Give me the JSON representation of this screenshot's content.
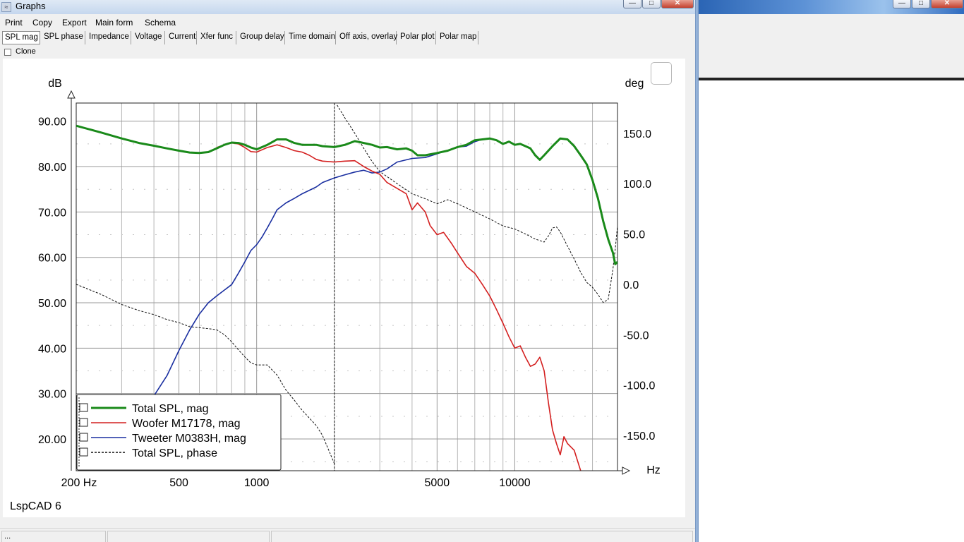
{
  "window": {
    "title": "Graphs",
    "icon_name": "app-graph-icon"
  },
  "menu": [
    "Print",
    "Copy",
    "Export",
    "Main form",
    "Schema"
  ],
  "tabs": [
    "SPL mag",
    "SPL phase",
    "Impedance",
    "Voltage",
    "Current",
    "Xfer func",
    "Group delay",
    "Time domain",
    "Off axis, overlay",
    "Polar plot",
    "Polar map"
  ],
  "active_tab": "SPL mag",
  "clone_label": "Clone",
  "watermark": "LspCAD 6",
  "status": {
    "left": "..."
  },
  "chart_data": {
    "type": "line",
    "xscale": "log",
    "xlim": [
      200,
      25000
    ],
    "ylim_left": [
      13,
      94
    ],
    "ylim_right": [
      -185,
      180
    ],
    "ylabel_left": "dB",
    "ylabel_right": "deg",
    "xlabel": "Hz",
    "x_ticks": [
      {
        "v": 200,
        "label": "200 Hz"
      },
      {
        "v": 500,
        "label": "500"
      },
      {
        "v": 1000,
        "label": "1000"
      },
      {
        "v": 5000,
        "label": "5000"
      },
      {
        "v": 10000,
        "label": "10000"
      }
    ],
    "y_ticks_left": [
      "90.00",
      "80.00",
      "70.00",
      "60.00",
      "50.00",
      "40.00",
      "30.00",
      "20.00"
    ],
    "y_ticks_right": [
      "150.0",
      "100.0",
      "50.0",
      "0.0",
      "-50.0",
      "-100.0",
      "-150.0"
    ],
    "grid": true,
    "marker_x": 2000,
    "legend_position": "bottom-left",
    "series": [
      {
        "name": "Total SPL, mag",
        "axis": "left",
        "color": "#1a8a1a",
        "style": "solid",
        "width": 3,
        "points": [
          [
            200,
            89
          ],
          [
            250,
            87.5
          ],
          [
            300,
            86.2
          ],
          [
            350,
            85.2
          ],
          [
            400,
            84.6
          ],
          [
            450,
            84
          ],
          [
            500,
            83.5
          ],
          [
            550,
            83.1
          ],
          [
            600,
            83
          ],
          [
            650,
            83.2
          ],
          [
            700,
            84
          ],
          [
            750,
            84.8
          ],
          [
            800,
            85.3
          ],
          [
            850,
            85.2
          ],
          [
            900,
            84.8
          ],
          [
            950,
            84.2
          ],
          [
            1000,
            83.8
          ],
          [
            1100,
            84.8
          ],
          [
            1200,
            86
          ],
          [
            1300,
            86
          ],
          [
            1400,
            85.2
          ],
          [
            1500,
            84.8
          ],
          [
            1700,
            84.8
          ],
          [
            1800,
            84.5
          ],
          [
            2000,
            84.3
          ],
          [
            2200,
            84.8
          ],
          [
            2400,
            85.6
          ],
          [
            2600,
            85.2
          ],
          [
            2800,
            84.8
          ],
          [
            3000,
            84.2
          ],
          [
            3200,
            84.3
          ],
          [
            3500,
            83.8
          ],
          [
            3800,
            84
          ],
          [
            4000,
            83.5
          ],
          [
            4200,
            82.5
          ],
          [
            4500,
            82.5
          ],
          [
            5000,
            83
          ],
          [
            5500,
            83.5
          ],
          [
            6000,
            84.3
          ],
          [
            6500,
            84.8
          ],
          [
            7000,
            85.8
          ],
          [
            7500,
            86
          ],
          [
            8000,
            86.2
          ],
          [
            8500,
            85.8
          ],
          [
            9000,
            85
          ],
          [
            9500,
            85.5
          ],
          [
            10000,
            84.8
          ],
          [
            10500,
            85
          ],
          [
            11000,
            84.5
          ],
          [
            11500,
            84
          ],
          [
            12000,
            82.5
          ],
          [
            12500,
            81.5
          ],
          [
            13000,
            82.5
          ],
          [
            14000,
            84.5
          ],
          [
            15000,
            86.2
          ],
          [
            16000,
            86
          ],
          [
            17000,
            84.5
          ],
          [
            18000,
            82.5
          ],
          [
            19000,
            80.5
          ],
          [
            20000,
            77
          ],
          [
            21000,
            73
          ],
          [
            22000,
            68
          ],
          [
            23000,
            64
          ],
          [
            24000,
            61
          ],
          [
            24500,
            58.5
          ],
          [
            25000,
            59
          ]
        ]
      },
      {
        "name": "Woofer M17178, mag",
        "axis": "left",
        "color": "#d42020",
        "style": "solid",
        "width": 1.6,
        "points": [
          [
            700,
            84.2
          ],
          [
            750,
            84.8
          ],
          [
            800,
            85.2
          ],
          [
            850,
            85
          ],
          [
            900,
            84.2
          ],
          [
            950,
            83.3
          ],
          [
            1000,
            83.2
          ],
          [
            1100,
            84.2
          ],
          [
            1200,
            84.8
          ],
          [
            1300,
            84.2
          ],
          [
            1400,
            83.5
          ],
          [
            1500,
            83.2
          ],
          [
            1600,
            82.5
          ],
          [
            1700,
            81.6
          ],
          [
            1800,
            81.2
          ],
          [
            2000,
            81
          ],
          [
            2200,
            81.2
          ],
          [
            2400,
            81.3
          ],
          [
            2600,
            80
          ],
          [
            2800,
            79
          ],
          [
            3000,
            78.3
          ],
          [
            3200,
            76.5
          ],
          [
            3500,
            75.2
          ],
          [
            3800,
            74
          ],
          [
            4000,
            70.5
          ],
          [
            4200,
            72
          ],
          [
            4500,
            70
          ],
          [
            4700,
            67
          ],
          [
            5000,
            65
          ],
          [
            5300,
            65.5
          ],
          [
            5700,
            63
          ],
          [
            6000,
            61
          ],
          [
            6500,
            58
          ],
          [
            7000,
            56.5
          ],
          [
            7500,
            54
          ],
          [
            8000,
            51.5
          ],
          [
            8500,
            48.5
          ],
          [
            9000,
            45.5
          ],
          [
            9500,
            42.5
          ],
          [
            10000,
            40
          ],
          [
            10500,
            40.5
          ],
          [
            11000,
            38
          ],
          [
            11500,
            36
          ],
          [
            12000,
            36.5
          ],
          [
            12500,
            38
          ],
          [
            13000,
            35
          ],
          [
            13500,
            28
          ],
          [
            14000,
            22
          ],
          [
            14500,
            19
          ],
          [
            15000,
            16.5
          ],
          [
            15500,
            20.5
          ],
          [
            16000,
            19
          ],
          [
            17000,
            17.5
          ],
          [
            18000,
            13
          ]
        ]
      },
      {
        "name": "Tweeter M0383H, mag",
        "axis": "left",
        "color": "#1a2fa0",
        "style": "solid",
        "width": 1.6,
        "points": [
          [
            400,
            29.5
          ],
          [
            450,
            34
          ],
          [
            500,
            39.5
          ],
          [
            550,
            44
          ],
          [
            600,
            47.5
          ],
          [
            650,
            50
          ],
          [
            700,
            51.5
          ],
          [
            750,
            52.8
          ],
          [
            800,
            54
          ],
          [
            850,
            56.5
          ],
          [
            900,
            59
          ],
          [
            950,
            61.5
          ],
          [
            1000,
            62.8
          ],
          [
            1050,
            64.5
          ],
          [
            1100,
            66.5
          ],
          [
            1150,
            68.5
          ],
          [
            1200,
            70.5
          ],
          [
            1300,
            72
          ],
          [
            1400,
            73
          ],
          [
            1500,
            74
          ],
          [
            1700,
            75.5
          ],
          [
            1800,
            76.5
          ],
          [
            2000,
            77.5
          ],
          [
            2200,
            78.2
          ],
          [
            2400,
            78.8
          ],
          [
            2600,
            79.2
          ],
          [
            2800,
            78.6
          ],
          [
            3000,
            78.8
          ],
          [
            3200,
            79.5
          ],
          [
            3500,
            81
          ],
          [
            4000,
            81.8
          ],
          [
            4500,
            82
          ],
          [
            5000,
            82.8
          ],
          [
            5500,
            83.6
          ],
          [
            6000,
            84.3
          ],
          [
            6500,
            84.5
          ],
          [
            7000,
            85.5
          ],
          [
            7500,
            86
          ]
        ]
      },
      {
        "name": "Total SPL, phase",
        "axis": "right",
        "color": "#111111",
        "style": "dashed",
        "width": 1,
        "points": [
          [
            200,
            0
          ],
          [
            250,
            -10
          ],
          [
            300,
            -20
          ],
          [
            350,
            -26
          ],
          [
            400,
            -30
          ],
          [
            450,
            -35
          ],
          [
            500,
            -38
          ],
          [
            550,
            -42
          ],
          [
            600,
            -43
          ],
          [
            650,
            -44
          ],
          [
            700,
            -45
          ],
          [
            750,
            -50
          ],
          [
            800,
            -57
          ],
          [
            850,
            -65
          ],
          [
            900,
            -72
          ],
          [
            950,
            -78
          ],
          [
            1000,
            -80
          ],
          [
            1100,
            -80
          ],
          [
            1200,
            -90
          ],
          [
            1300,
            -105
          ],
          [
            1400,
            -115
          ],
          [
            1500,
            -125
          ],
          [
            1700,
            -140
          ],
          [
            1800,
            -150
          ],
          [
            2000,
            -178
          ],
          [
            2050,
            178
          ],
          [
            2200,
            165
          ],
          [
            2400,
            150
          ],
          [
            2600,
            135
          ],
          [
            2800,
            122
          ],
          [
            3000,
            112
          ],
          [
            3500,
            100
          ],
          [
            4000,
            90
          ],
          [
            4500,
            85
          ],
          [
            5000,
            80
          ],
          [
            5500,
            84
          ],
          [
            6000,
            80
          ],
          [
            7000,
            72
          ],
          [
            8000,
            65
          ],
          [
            9000,
            58
          ],
          [
            10000,
            55
          ],
          [
            11000,
            50
          ],
          [
            12000,
            45
          ],
          [
            13000,
            42
          ],
          [
            13500,
            48
          ],
          [
            14000,
            56
          ],
          [
            14500,
            57
          ],
          [
            15000,
            52
          ],
          [
            16000,
            38
          ],
          [
            17000,
            25
          ],
          [
            18000,
            12
          ],
          [
            19000,
            2
          ],
          [
            20000,
            -3
          ],
          [
            21000,
            -10
          ],
          [
            22000,
            -18
          ],
          [
            23000,
            -15
          ],
          [
            23500,
            0
          ],
          [
            24000,
            15
          ],
          [
            24500,
            35
          ],
          [
            25000,
            58
          ]
        ]
      }
    ]
  }
}
